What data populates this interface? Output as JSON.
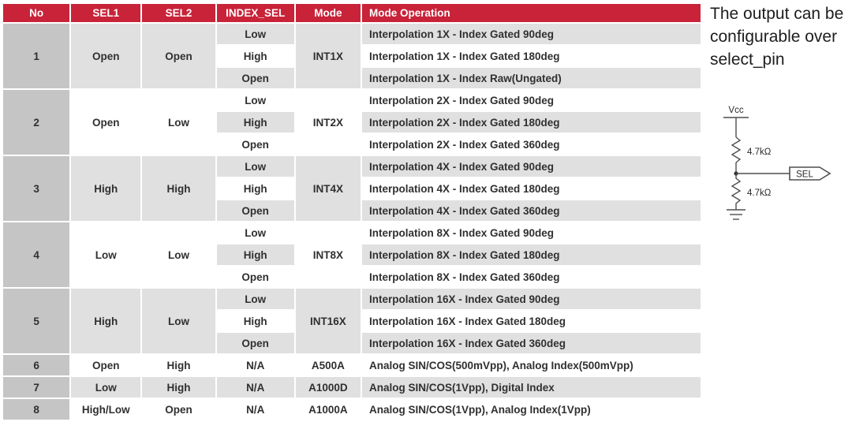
{
  "colors": {
    "header_bg": "#c82339",
    "header_text": "#ffffff",
    "no_col_bg": "#c5c5c5",
    "row_gray": "#e0e0e0",
    "row_white": "#ffffff",
    "body_text": "#303030",
    "circuit_stroke": "#4f4f4f"
  },
  "table": {
    "headers": [
      "No",
      "SEL1",
      "SEL2",
      "INDEX_SEL",
      "Mode",
      "Mode Operation"
    ],
    "groups": [
      {
        "no": "1",
        "sel1": "Open",
        "sel2": "Open",
        "mode": "INT1X",
        "rows": [
          {
            "index_sel": "Low",
            "operation": "Interpolation 1X - Index Gated 90deg"
          },
          {
            "index_sel": "High",
            "operation": "Interpolation 1X - Index Gated 180deg"
          },
          {
            "index_sel": "Open",
            "operation": "Interpolation 1X - Index Raw(Ungated)"
          }
        ]
      },
      {
        "no": "2",
        "sel1": "Open",
        "sel2": "Low",
        "mode": "INT2X",
        "rows": [
          {
            "index_sel": "Low",
            "operation": "Interpolation 2X - Index Gated 90deg"
          },
          {
            "index_sel": "High",
            "operation": "Interpolation 2X - Index Gated 180deg"
          },
          {
            "index_sel": "Open",
            "operation": "Interpolation 2X - Index Gated 360deg"
          }
        ]
      },
      {
        "no": "3",
        "sel1": "High",
        "sel2": "High",
        "mode": "INT4X",
        "rows": [
          {
            "index_sel": "Low",
            "operation": "Interpolation 4X - Index Gated 90deg"
          },
          {
            "index_sel": "High",
            "operation": "Interpolation 4X - Index Gated 180deg"
          },
          {
            "index_sel": "Open",
            "operation": "Interpolation 4X - Index Gated 360deg"
          }
        ]
      },
      {
        "no": "4",
        "sel1": "Low",
        "sel2": "Low",
        "mode": "INT8X",
        "rows": [
          {
            "index_sel": "Low",
            "operation": "Interpolation 8X - Index Gated 90deg"
          },
          {
            "index_sel": "High",
            "operation": "Interpolation 8X - Index Gated 180deg"
          },
          {
            "index_sel": "Open",
            "operation": "Interpolation 8X - Index Gated 360deg"
          }
        ]
      },
      {
        "no": "5",
        "sel1": "High",
        "sel2": "Low",
        "mode": "INT16X",
        "rows": [
          {
            "index_sel": "Low",
            "operation": "Interpolation 16X - Index Gated 90deg"
          },
          {
            "index_sel": "High",
            "operation": "Interpolation 16X - Index Gated 180deg"
          },
          {
            "index_sel": "Open",
            "operation": "Interpolation 16X - Index Gated 360deg"
          }
        ]
      },
      {
        "no": "6",
        "sel1": "Open",
        "sel2": "High",
        "mode": "A500A",
        "rows": [
          {
            "index_sel": "N/A",
            "operation": "Analog SIN/COS(500mVpp), Analog Index(500mVpp)"
          }
        ]
      },
      {
        "no": "7",
        "sel1": "Low",
        "sel2": "High",
        "mode": "A1000D",
        "rows": [
          {
            "index_sel": "N/A",
            "operation": "Analog SIN/COS(1Vpp), Digital Index"
          }
        ]
      },
      {
        "no": "8",
        "sel1": "High/Low",
        "sel2": "Open",
        "mode": "A1000A",
        "rows": [
          {
            "index_sel": "N/A",
            "operation": "Analog SIN/COS(1Vpp), Analog Index(1Vpp)"
          }
        ]
      }
    ]
  },
  "side_note": "The output can be configurable over select_pin",
  "circuit": {
    "vcc_label": "Vcc",
    "top_resistor_label": "4.7kΩ",
    "bottom_resistor_label": "4.7kΩ",
    "sel_label": "SEL"
  }
}
